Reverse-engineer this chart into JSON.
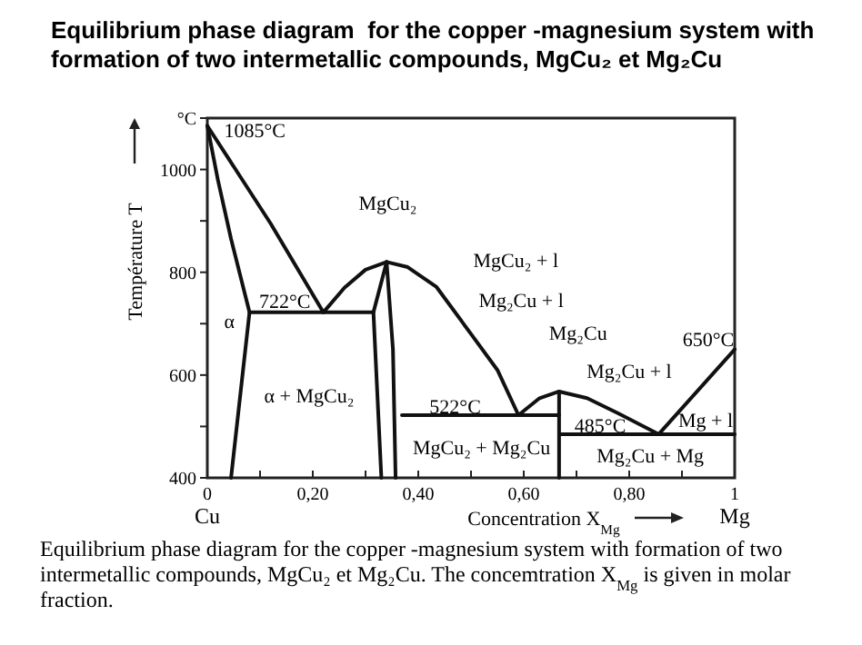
{
  "chart_data": {
    "type": "line",
    "title": "Equilibrium phase diagram  for the copper -magnesium system with formation of two intermetallic compounds, MgCu₂ et Mg₂Cu",
    "xlabel": "Concentration X$_{Mg}$",
    "ylabel": "Température T",
    "xlim": [
      0,
      1
    ],
    "ylim": [
      400,
      1100
    ],
    "xticks": [
      {
        "value": 0,
        "label": "0\nCu"
      },
      {
        "value": 0.1,
        "label": null
      },
      {
        "value": 0.2,
        "label": "0,20"
      },
      {
        "value": 0.3,
        "label": null
      },
      {
        "value": 0.4,
        "label": "0,40"
      },
      {
        "value": 0.5,
        "label": null
      },
      {
        "value": 0.6,
        "label": "0,60"
      },
      {
        "value": 0.7,
        "label": null
      },
      {
        "value": 0.8,
        "label": "0,80"
      },
      {
        "value": 0.9,
        "label": null
      },
      {
        "value": 1,
        "label": "1\nMg"
      }
    ],
    "yticks": [
      400,
      {
        "value": 500,
        "label": null
      },
      600,
      {
        "value": 700,
        "label": null
      },
      800,
      {
        "value": 900,
        "label": null
      },
      1000,
      {
        "value": 1100,
        "label": "°C"
      }
    ],
    "grid": false,
    "marker": "none",
    "line_style": "solid",
    "series": [
      {
        "color": "#111111",
        "x": [
          0,
          0.06,
          0.12,
          0.22
        ],
        "values": [
          1085,
          990,
          895,
          722
        ]
      },
      {
        "color": "#111111",
        "x": [
          0,
          0.02,
          0.045,
          0.08,
          0.045
        ],
        "values": [
          1085,
          980,
          865,
          722,
          400
        ]
      },
      {
        "color": "#111111",
        "x": [
          0.08,
          0.315
        ],
        "values": [
          722,
          722
        ]
      },
      {
        "color": "#111111",
        "x": [
          0.22,
          0.26,
          0.3,
          0.34
        ],
        "values": [
          722,
          770,
          805,
          820
        ]
      },
      {
        "color": "#111111",
        "x": [
          0.33,
          0.315,
          0.34,
          0.352,
          0.357
        ],
        "values": [
          400,
          722,
          820,
          650,
          400
        ]
      },
      {
        "color": "#111111",
        "x": [
          0.34,
          0.38,
          0.434,
          0.5,
          0.55,
          0.59
        ],
        "values": [
          820,
          810,
          772,
          680,
          610,
          522
        ]
      },
      {
        "color": "#111111",
        "x": [
          0.369,
          0.667
        ],
        "values": [
          522,
          522
        ]
      },
      {
        "color": "#111111",
        "x": [
          0.59,
          0.63,
          0.667,
          0.72,
          0.78,
          0.856
        ],
        "values": [
          522,
          555,
          568,
          555,
          525,
          485
        ]
      },
      {
        "color": "#111111",
        "x": [
          0.667,
          0.667
        ],
        "values": [
          568,
          400
        ]
      },
      {
        "color": "#111111",
        "x": [
          0.667,
          1
        ],
        "values": [
          485,
          485
        ]
      },
      {
        "color": "#111111",
        "x": [
          0.856,
          1
        ],
        "values": [
          485,
          650
        ]
      }
    ],
    "annotations": [
      "1085°C",
      "722°C",
      "MgCu₂",
      "MgCu₂ + l",
      "Mg₂Cu + l",
      "Mg₂Cu",
      "650°C",
      "Mg₂Cu + l",
      "522°C",
      "485°C",
      "Mg + l",
      "α",
      "α + MgCu₂",
      "MgCu₂ + Mg₂Cu",
      "Mg₂Cu + Mg",
      "Equilibrium phase diagram  for the copper -magnesium system with formation of two intermetallic compounds, MgCu₂ et Mg₂Cu. The concemtration X$_{Mg}$ is given in molar fraction."
    ]
  }
}
